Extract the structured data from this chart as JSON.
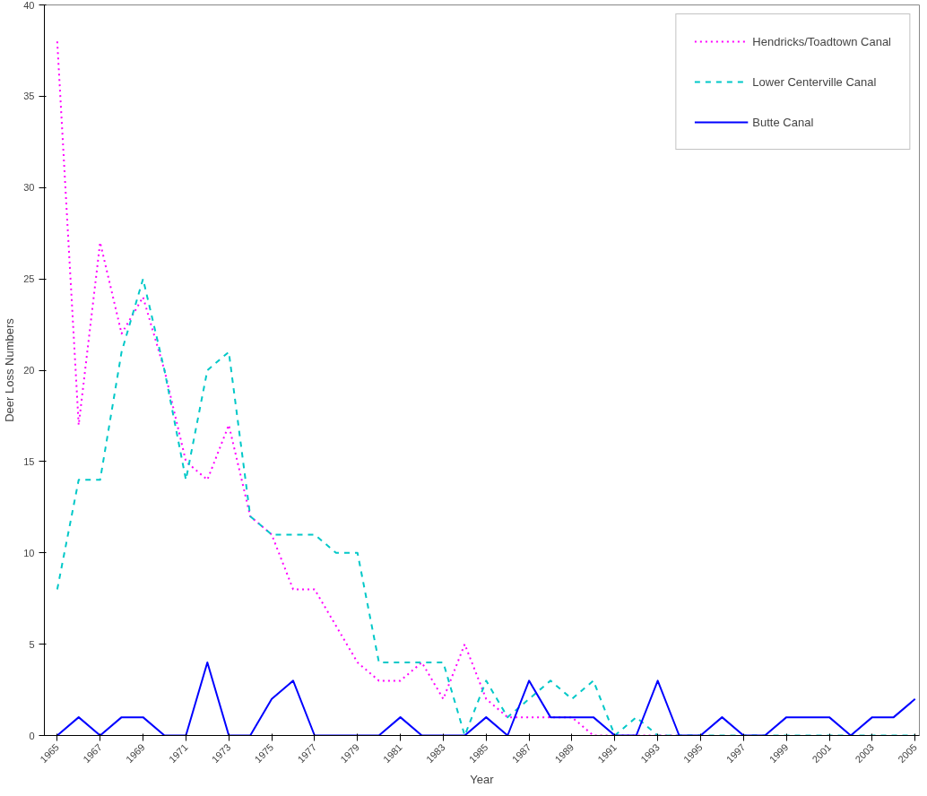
{
  "chart_data": {
    "type": "line",
    "xlabel": "Year",
    "ylabel": "Deer Loss Numbers",
    "x": [
      1965,
      1966,
      1967,
      1968,
      1969,
      1970,
      1971,
      1972,
      1973,
      1974,
      1975,
      1976,
      1977,
      1978,
      1979,
      1980,
      1981,
      1982,
      1983,
      1984,
      1985,
      1986,
      1987,
      1988,
      1989,
      1990,
      1991,
      1992,
      1993,
      1994,
      1995,
      1996,
      1997,
      1998,
      1999,
      2000,
      2001,
      2002,
      2003,
      2004,
      2005
    ],
    "series": [
      {
        "name": "Hendricks/Toadtown Canal",
        "color": "#ff00ff",
        "line_style": "dotted",
        "values": [
          38,
          17,
          27,
          22,
          24,
          20,
          15,
          14,
          17,
          12,
          11,
          8,
          8,
          6,
          4,
          3,
          3,
          4,
          2,
          5,
          2,
          1,
          1,
          1,
          1,
          0,
          0,
          0,
          0,
          0,
          null,
          null,
          null,
          null,
          null,
          null,
          null,
          null,
          null,
          null,
          null
        ]
      },
      {
        "name": "Lower Centerville Canal",
        "color": "#00c8c8",
        "line_style": "dashed",
        "values": [
          8,
          14,
          14,
          21,
          25,
          20,
          14,
          20,
          21,
          12,
          11,
          11,
          11,
          10,
          10,
          4,
          4,
          4,
          4,
          0,
          3,
          1,
          2,
          3,
          2,
          3,
          0,
          1,
          0,
          0,
          0,
          0,
          0,
          0,
          0,
          0,
          0,
          0,
          0,
          0,
          0
        ]
      },
      {
        "name": "Butte Canal",
        "color": "#0000ff",
        "line_style": "solid",
        "values": [
          0,
          1,
          0,
          1,
          1,
          0,
          0,
          4,
          0,
          0,
          2,
          3,
          0,
          0,
          0,
          0,
          1,
          0,
          0,
          0,
          1,
          0,
          3,
          1,
          1,
          1,
          0,
          0,
          3,
          0,
          0,
          1,
          0,
          0,
          1,
          1,
          1,
          0,
          1,
          1,
          2
        ]
      }
    ],
    "xlim": [
      1964.4,
      2005.2
    ],
    "xticks": [
      1965,
      1967,
      1969,
      1971,
      1973,
      1975,
      1977,
      1979,
      1981,
      1983,
      1985,
      1987,
      1989,
      1991,
      1993,
      1995,
      1997,
      1999,
      2001,
      2003,
      2005
    ],
    "ylim": [
      0,
      40
    ],
    "yticks": [
      0,
      5,
      10,
      15,
      20,
      25,
      30,
      35,
      40
    ],
    "grid": false,
    "legend": "top right",
    "marker": "none"
  }
}
